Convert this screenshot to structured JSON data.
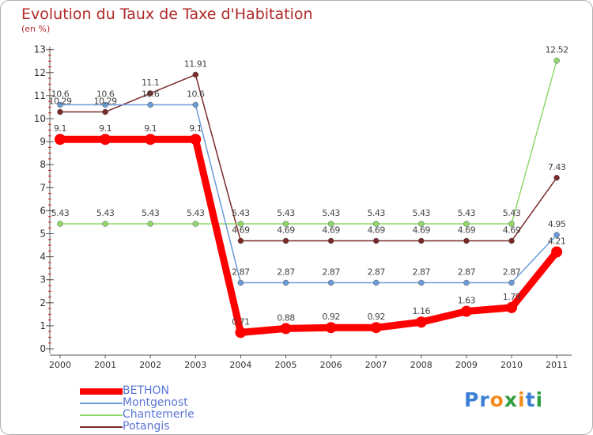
{
  "chart_data": {
    "type": "line",
    "title": "Evolution du Taux de Taxe d'Habitation",
    "subtitle": "(en %)",
    "x": [
      "2000",
      "2001",
      "2002",
      "2003",
      "2004",
      "2005",
      "2006",
      "2007",
      "2008",
      "2009",
      "2010",
      "2011"
    ],
    "ylim": [
      0,
      13
    ],
    "yticks": [
      0,
      1,
      2,
      3,
      4,
      5,
      6,
      7,
      8,
      9,
      10,
      11,
      12,
      13
    ],
    "grid": false,
    "legend_position": "bottom-left",
    "series": [
      {
        "name": "BETHON",
        "color": "#ff0000",
        "values": [
          9.1,
          9.1,
          9.1,
          9.1,
          0.71,
          0.88,
          0.92,
          0.92,
          1.16,
          1.63,
          1.79,
          4.21
        ],
        "labels": [
          "9.1",
          "9.1",
          "9.1",
          "9.1",
          "0.71",
          "0.88",
          "0.92",
          "0.92",
          "1.16",
          "1.63",
          "1.79",
          "4.21"
        ]
      },
      {
        "name": "Montgenost",
        "color": "#6a9bd8",
        "values": [
          10.6,
          10.6,
          10.6,
          10.6,
          2.87,
          2.87,
          2.87,
          2.87,
          2.87,
          2.87,
          2.87,
          4.95
        ],
        "labels": [
          "10.6",
          "10.6",
          "10.6",
          "10.6",
          "2.87",
          "2.87",
          "2.87",
          "2.87",
          "2.87",
          "2.87",
          "2.87",
          "4.95"
        ]
      },
      {
        "name": "Chantemerle",
        "color": "#8fd86a",
        "values": [
          5.43,
          5.43,
          5.43,
          5.43,
          5.43,
          5.43,
          5.43,
          5.43,
          5.43,
          5.43,
          5.43,
          12.52
        ],
        "labels": [
          "5.43",
          "5.43",
          "5.43",
          "5.43",
          "5.43",
          "5.43",
          "5.43",
          "5.43",
          "5.43",
          "5.43",
          "5.43",
          "12.52"
        ]
      },
      {
        "name": "Potangis",
        "color": "#7a2a2a",
        "values": [
          10.29,
          10.29,
          11.1,
          11.91,
          4.69,
          4.69,
          4.69,
          4.69,
          4.69,
          4.69,
          4.69,
          7.43
        ],
        "labels": [
          "10.29",
          "10.29",
          "11.1",
          "11.91",
          "4.69",
          "4.69",
          "4.69",
          "4.69",
          "4.69",
          "4.69",
          "4.69",
          "7.43"
        ]
      }
    ]
  },
  "logo": {
    "letters": [
      "P",
      "r",
      "o",
      "x",
      "i",
      "t",
      "i"
    ],
    "colors": [
      "#3b7fd4",
      "#3b7fd4",
      "#f08c1e",
      "#2e9e3e",
      "#f08c1e",
      "#3b7fd4",
      "#2e9e3e"
    ]
  }
}
